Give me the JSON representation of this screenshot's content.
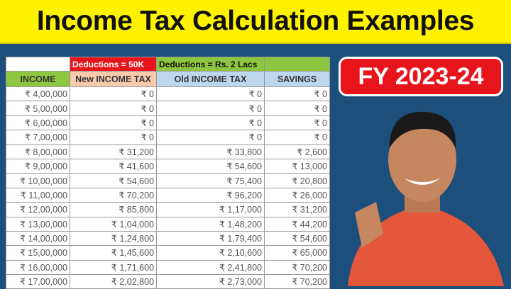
{
  "title": "Income Tax Calculation Examples",
  "badge": "FY 2023-24",
  "table": {
    "group_headers": {
      "new": "Deductions = 50K",
      "old": "Deductions = Rs. 2 Lacs"
    },
    "columns": [
      "INCOME",
      "New INCOME TAX",
      "Old INCOME TAX",
      "SAVINGS"
    ],
    "rows": [
      [
        "₹ 4,00,000",
        "₹ 0",
        "₹ 0",
        "₹ 0"
      ],
      [
        "₹ 5,00,000",
        "₹ 0",
        "₹ 0",
        "₹ 0"
      ],
      [
        "₹ 6,00,000",
        "₹ 0",
        "₹ 0",
        "₹ 0"
      ],
      [
        "₹ 7,00,000",
        "₹ 0",
        "₹ 0",
        "₹ 0"
      ],
      [
        "₹ 8,00,000",
        "₹ 31,200",
        "₹ 33,800",
        "₹ 2,600"
      ],
      [
        "₹ 9,00,000",
        "₹ 41,600",
        "₹ 54,600",
        "₹ 13,000"
      ],
      [
        "₹ 10,00,000",
        "₹ 54,600",
        "₹ 75,400",
        "₹ 20,800"
      ],
      [
        "₹ 11,00,000",
        "₹ 70,200",
        "₹ 96,200",
        "₹ 26,000"
      ],
      [
        "₹ 12,00,000",
        "₹ 85,800",
        "₹ 1,17,000",
        "₹ 31,200"
      ],
      [
        "₹ 13,00,000",
        "₹ 1,04,000",
        "₹ 1,48,200",
        "₹ 44,200"
      ],
      [
        "₹ 14,00,000",
        "₹ 1,24,800",
        "₹ 1,79,400",
        "₹ 54,600"
      ],
      [
        "₹ 15,00,000",
        "₹ 1,45,600",
        "₹ 2,10,600",
        "₹ 65,000"
      ],
      [
        "₹ 16,00,000",
        "₹ 1,71,600",
        "₹ 2,41,800",
        "₹ 70,200"
      ],
      [
        "₹ 17,00,000",
        "₹ 2,02,800",
        "₹ 2,73,000",
        "₹ 70,200"
      ]
    ]
  },
  "colors": {
    "title_bg": "#fff200",
    "background": "#1d4f7c",
    "red": "#e8141b",
    "green": "#8dc63f",
    "peach": "#f8cbad",
    "light_blue": "#bdd7ee"
  }
}
